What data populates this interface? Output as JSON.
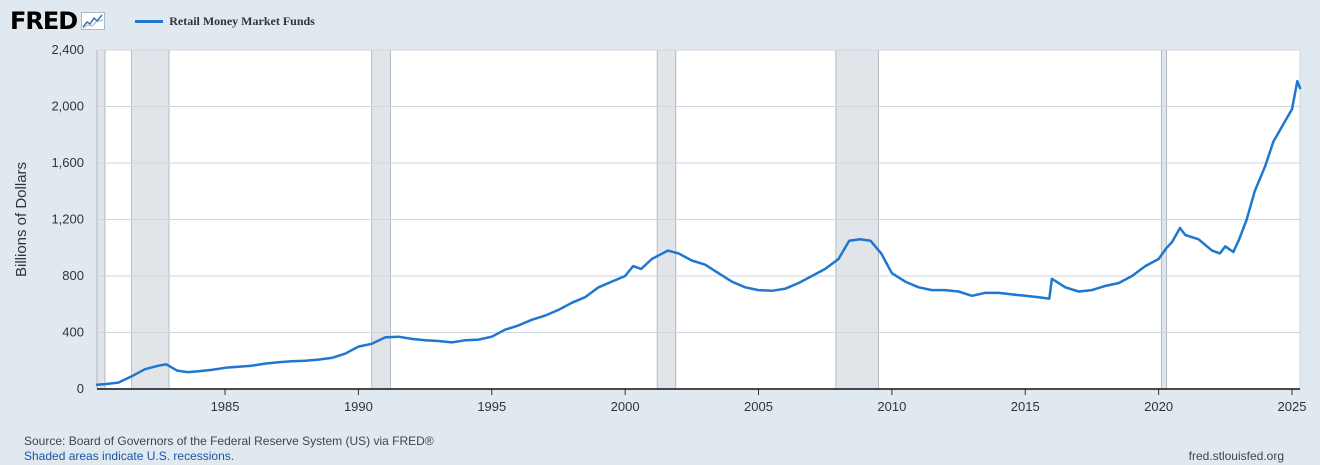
{
  "header": {
    "logo": "FRED",
    "icon": "fred-chart-icon",
    "legend": "Retail Money Market Funds"
  },
  "footer": {
    "source": "Source: Board of Governors of the Federal Reserve System (US) via FRED®",
    "note": "Shaded areas indicate U.S. recessions.",
    "website": "fred.stlouisfed.org"
  },
  "chart_data": {
    "type": "line",
    "title": "",
    "ylabel": "Billions of Dollars",
    "xlabel": "",
    "xlim": [
      1980.2,
      2025.3
    ],
    "ylim": [
      0,
      2400
    ],
    "yticks": [
      0,
      400,
      800,
      1200,
      1600,
      2000,
      2400
    ],
    "ytick_labels": [
      "0",
      "400",
      "800",
      "1,200",
      "1,600",
      "2,000",
      "2,400"
    ],
    "xticks": [
      1985,
      1990,
      1995,
      2000,
      2005,
      2010,
      2015,
      2020,
      2025
    ],
    "xtick_labels": [
      "1985",
      "1990",
      "1995",
      "2000",
      "2005",
      "2010",
      "2015",
      "2020",
      "2025"
    ],
    "grid": true,
    "line_color": "#1f77d0",
    "recession_color": "#e1e5ea",
    "recessions": [
      [
        1980.0,
        1980.5
      ],
      [
        1981.5,
        1982.9
      ],
      [
        1990.5,
        1991.2
      ],
      [
        2001.2,
        2001.9
      ],
      [
        2007.9,
        2009.5
      ],
      [
        2020.1,
        2020.3
      ]
    ],
    "series": [
      {
        "name": "Retail Money Market Funds",
        "x": [
          1980.2,
          1980.5,
          1981.0,
          1981.5,
          1982.0,
          1982.5,
          1982.8,
          1983.2,
          1983.6,
          1984.0,
          1984.5,
          1985.0,
          1985.5,
          1986.0,
          1986.5,
          1987.0,
          1987.5,
          1988.0,
          1988.5,
          1989.0,
          1989.5,
          1990.0,
          1990.5,
          1991.0,
          1991.5,
          1992.0,
          1992.5,
          1993.0,
          1993.5,
          1994.0,
          1994.5,
          1995.0,
          1995.5,
          1996.0,
          1996.5,
          1997.0,
          1997.5,
          1998.0,
          1998.5,
          1999.0,
          1999.5,
          2000.0,
          2000.3,
          2000.6,
          2001.0,
          2001.3,
          2001.6,
          2002.0,
          2002.5,
          2003.0,
          2003.5,
          2004.0,
          2004.5,
          2005.0,
          2005.5,
          2006.0,
          2006.5,
          2007.0,
          2007.5,
          2008.0,
          2008.4,
          2008.8,
          2009.2,
          2009.6,
          2010.0,
          2010.5,
          2011.0,
          2011.5,
          2012.0,
          2012.5,
          2013.0,
          2013.5,
          2014.0,
          2014.5,
          2015.0,
          2015.5,
          2015.9,
          2016.0,
          2016.5,
          2017.0,
          2017.5,
          2018.0,
          2018.5,
          2019.0,
          2019.5,
          2020.0,
          2020.3,
          2020.5,
          2020.8,
          2021.0,
          2021.5,
          2022.0,
          2022.3,
          2022.5,
          2022.8,
          2023.0,
          2023.3,
          2023.6,
          2024.0,
          2024.3,
          2024.6,
          2025.0,
          2025.2,
          2025.3
        ],
        "values": [
          30,
          35,
          45,
          90,
          140,
          165,
          175,
          130,
          120,
          125,
          135,
          150,
          158,
          165,
          180,
          190,
          197,
          200,
          208,
          220,
          250,
          300,
          320,
          365,
          370,
          355,
          345,
          340,
          330,
          345,
          350,
          370,
          420,
          450,
          490,
          520,
          560,
          610,
          650,
          720,
          760,
          800,
          870,
          850,
          920,
          950,
          980,
          960,
          910,
          880,
          820,
          760,
          720,
          700,
          695,
          710,
          750,
          800,
          850,
          920,
          1050,
          1060,
          1050,
          960,
          820,
          760,
          720,
          700,
          700,
          690,
          660,
          680,
          680,
          670,
          660,
          650,
          640,
          780,
          720,
          690,
          700,
          730,
          750,
          800,
          870,
          920,
          1000,
          1040,
          1140,
          1090,
          1060,
          980,
          960,
          1010,
          970,
          1050,
          1200,
          1400,
          1580,
          1750,
          1850,
          1980,
          2180,
          2130
        ]
      }
    ]
  }
}
